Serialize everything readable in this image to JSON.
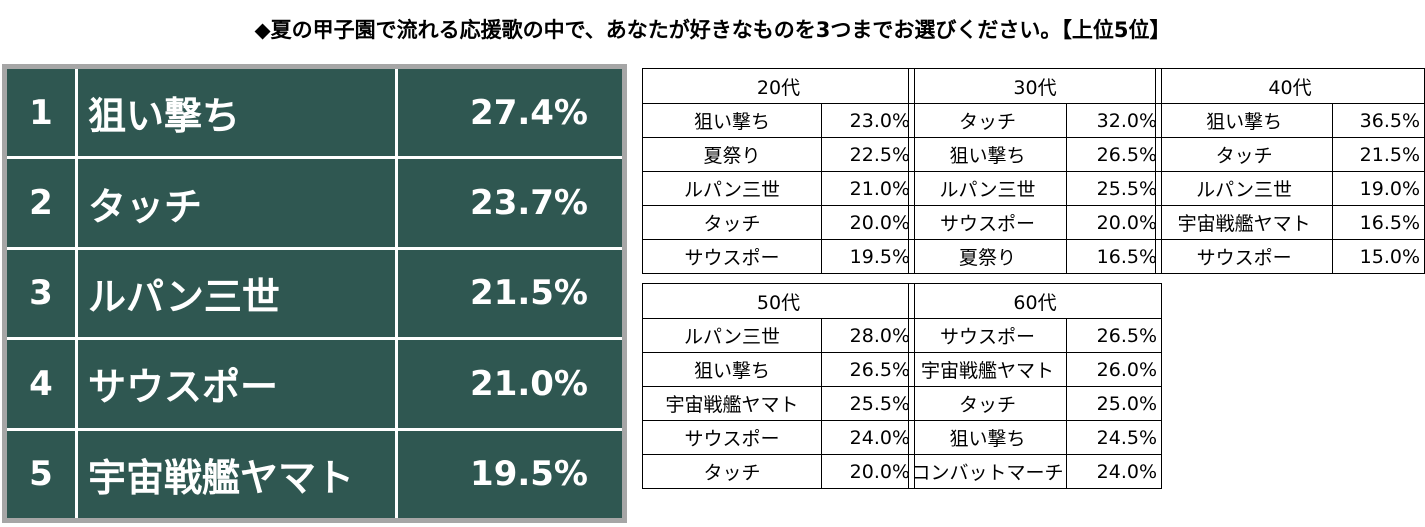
{
  "title": "◆夏の甲子園で流れる応援歌の中で、あなたが好きなものを3つまでお選びください。【上位5位】",
  "ranking": [
    {
      "rank": "1",
      "name": "狙い撃ち",
      "pct": "27.4%"
    },
    {
      "rank": "2",
      "name": "タッチ",
      "pct": "23.7%"
    },
    {
      "rank": "3",
      "name": "ルパン三世",
      "pct": "21.5%"
    },
    {
      "rank": "4",
      "name": "サウスポー",
      "pct": "21.0%"
    },
    {
      "rank": "5",
      "name": "宇宙戦艦ヤマト",
      "pct": "19.5%"
    }
  ],
  "colors": {
    "ranking_bg": "#2f5751",
    "ranking_border": "#a6a6a6"
  },
  "age_groups": [
    {
      "label": "20代",
      "rows": [
        [
          "狙い撃ち",
          "23.0%"
        ],
        [
          "夏祭り",
          "22.5%"
        ],
        [
          "ルパン三世",
          "21.0%"
        ],
        [
          "タッチ",
          "20.0%"
        ],
        [
          "サウスポー",
          "19.5%"
        ]
      ]
    },
    {
      "label": "30代",
      "rows": [
        [
          "タッチ",
          "32.0%"
        ],
        [
          "狙い撃ち",
          "26.5%"
        ],
        [
          "ルパン三世",
          "25.5%"
        ],
        [
          "サウスポー",
          "20.0%"
        ],
        [
          "夏祭り",
          "16.5%"
        ]
      ]
    },
    {
      "label": "40代",
      "rows": [
        [
          "狙い撃ち",
          "36.5%"
        ],
        [
          "タッチ",
          "21.5%"
        ],
        [
          "ルパン三世",
          "19.0%"
        ],
        [
          "宇宙戦艦ヤマト",
          "16.5%"
        ],
        [
          "サウスポー",
          "15.0%"
        ]
      ]
    },
    {
      "label": "50代",
      "rows": [
        [
          "ルパン三世",
          "28.0%"
        ],
        [
          "狙い撃ち",
          "26.5%"
        ],
        [
          "宇宙戦艦ヤマト",
          "25.5%"
        ],
        [
          "サウスポー",
          "24.0%"
        ],
        [
          "タッチ",
          "20.0%"
        ]
      ]
    },
    {
      "label": "60代",
      "rows": [
        [
          "サウスポー",
          "26.5%"
        ],
        [
          "宇宙戦艦ヤマト",
          "26.0%"
        ],
        [
          "タッチ",
          "25.0%"
        ],
        [
          "狙い撃ち",
          "24.5%"
        ],
        [
          "コンバットマーチ",
          "24.0%"
        ]
      ]
    }
  ]
}
